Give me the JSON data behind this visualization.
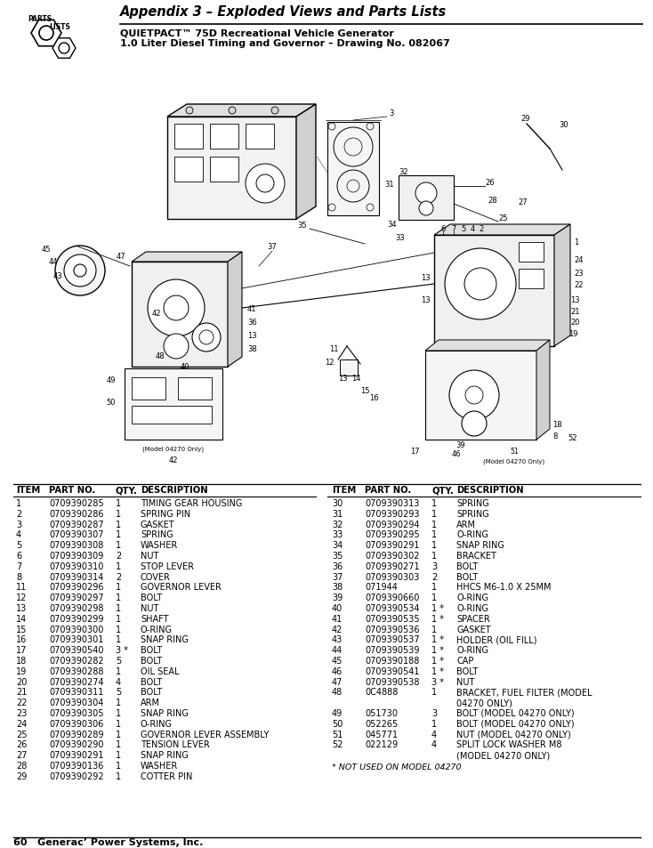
{
  "title": "Appendix 3 – Exploded Views and Parts Lists",
  "subtitle1": "QUIETPACT™ 75D Recreational Vehicle Generator",
  "subtitle2": "1.0 Liter Diesel Timing and Governor – Drawing No. 082067",
  "footer": "60   Generac’ Power Systems, Inc.",
  "footnote": "* NOT USED ON MODEL 04270",
  "parts_left": [
    [
      "1",
      "0709390285",
      "1",
      "TIMING GEAR HOUSING"
    ],
    [
      "2",
      "0709390286",
      "1",
      "SPRING PIN"
    ],
    [
      "3",
      "0709390287",
      "1",
      "GASKET"
    ],
    [
      "4",
      "0709390307",
      "1",
      "SPRING"
    ],
    [
      "5",
      "0709390308",
      "1",
      "WASHER"
    ],
    [
      "6",
      "0709390309",
      "2",
      "NUT"
    ],
    [
      "7",
      "0709390310",
      "1",
      "STOP LEVER"
    ],
    [
      "8",
      "0709390314",
      "2",
      "COVER"
    ],
    [
      "11",
      "0709390296",
      "1",
      "GOVERNOR LEVER"
    ],
    [
      "12",
      "0709390297",
      "1",
      "BOLT"
    ],
    [
      "13",
      "0709390298",
      "1",
      "NUT"
    ],
    [
      "14",
      "0709390299",
      "1",
      "SHAFT"
    ],
    [
      "15",
      "0709390300",
      "1",
      "O-RING"
    ],
    [
      "16",
      "0709390301",
      "1",
      "SNAP RING"
    ],
    [
      "17",
      "0709390540",
      "3 *",
      "BOLT"
    ],
    [
      "18",
      "0709390282",
      "5",
      "BOLT"
    ],
    [
      "19",
      "0709390288",
      "1",
      "OIL SEAL"
    ],
    [
      "20",
      "0709390274",
      "4",
      "BOLT"
    ],
    [
      "21",
      "0709390311",
      "5",
      "BOLT"
    ],
    [
      "22",
      "0709390304",
      "1",
      "ARM"
    ],
    [
      "23",
      "0709390305",
      "1",
      "SNAP RING"
    ],
    [
      "24",
      "0709390306",
      "1",
      "O-RING"
    ],
    [
      "25",
      "0709390289",
      "1",
      "GOVERNOR LEVER ASSEMBLY"
    ],
    [
      "26",
      "0709390290",
      "1",
      "TENSION LEVER"
    ],
    [
      "27",
      "0709390291",
      "1",
      "SNAP RING"
    ],
    [
      "28",
      "0709390136",
      "1",
      "WASHER"
    ],
    [
      "29",
      "0709390292",
      "1",
      "COTTER PIN"
    ]
  ],
  "parts_right": [
    [
      "30",
      "0709390313",
      "1",
      "SPRING"
    ],
    [
      "31",
      "0709390293",
      "1",
      "SPRING"
    ],
    [
      "32",
      "0709390294",
      "1",
      "ARM"
    ],
    [
      "33",
      "0709390295",
      "1",
      "O-RING"
    ],
    [
      "34",
      "0709390291",
      "1",
      "SNAP RING"
    ],
    [
      "35",
      "0709390302",
      "1",
      "BRACKET"
    ],
    [
      "36",
      "0709390271",
      "3",
      "BOLT"
    ],
    [
      "37",
      "0709390303",
      "2",
      "BOLT"
    ],
    [
      "38",
      "071944",
      "1",
      "HHCS M6-1.0 X 25MM"
    ],
    [
      "39",
      "0709390660",
      "1",
      "O-RING"
    ],
    [
      "40",
      "0709390534",
      "1 *",
      "O-RING"
    ],
    [
      "41",
      "0709390535",
      "1 *",
      "SPACER"
    ],
    [
      "42",
      "0709390536",
      "1",
      "GASKET"
    ],
    [
      "43",
      "0709390537",
      "1 *",
      "HOLDER (OIL FILL)"
    ],
    [
      "44",
      "0709390539",
      "1 *",
      "O-RING"
    ],
    [
      "45",
      "0709390188",
      "1 *",
      "CAP"
    ],
    [
      "46",
      "0709390541",
      "1 *",
      "BOLT"
    ],
    [
      "47",
      "0709390538",
      "3 *",
      "NUT"
    ],
    [
      "48",
      "0C4888",
      "1",
      "BRACKET, FUEL FILTER (MODEL"
    ],
    [
      "",
      "",
      "",
      "04270 ONLY)"
    ],
    [
      "49",
      "051730",
      "3",
      "BOLT (MODEL 04270 ONLY)"
    ],
    [
      "50",
      "052265",
      "1",
      "BOLT (MODEL 04270 ONLY)"
    ],
    [
      "51",
      "045771",
      "4",
      "NUT (MODEL 04270 ONLY)"
    ],
    [
      "52",
      "022129",
      "4",
      "SPLIT LOCK WASHER M8"
    ],
    [
      "",
      "",
      "",
      "(MODEL 04270 ONLY)"
    ]
  ],
  "bg_color": "#ffffff"
}
